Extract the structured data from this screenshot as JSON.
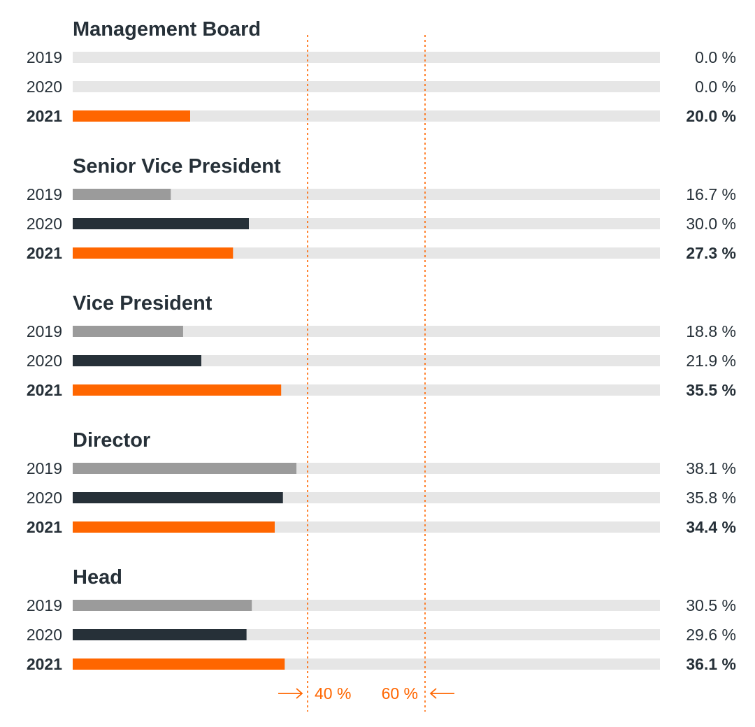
{
  "chart_data": {
    "type": "bar",
    "orientation": "horizontal",
    "xlim": [
      0,
      100
    ],
    "value_suffix": " %",
    "colors": {
      "track": "#e6e6e6",
      "2019": "#9b9b9b",
      "2020": "#263038",
      "2021": "#ff6600",
      "reference": "#ff6600",
      "text": "#263038"
    },
    "reference_lines": [
      {
        "value": 40,
        "label": "40 %",
        "arrow": "right"
      },
      {
        "value": 60,
        "label": "60 %",
        "arrow": "left"
      }
    ],
    "groups": [
      {
        "name": "Management Board",
        "rows": [
          {
            "year": "2019",
            "value": 0.0,
            "label": "0.0 %"
          },
          {
            "year": "2020",
            "value": 0.0,
            "label": "0.0 %"
          },
          {
            "year": "2021",
            "value": 20.0,
            "label": "20.0 %"
          }
        ]
      },
      {
        "name": "Senior Vice President",
        "rows": [
          {
            "year": "2019",
            "value": 16.7,
            "label": "16.7 %"
          },
          {
            "year": "2020",
            "value": 30.0,
            "label": "30.0 %"
          },
          {
            "year": "2021",
            "value": 27.3,
            "label": "27.3 %"
          }
        ]
      },
      {
        "name": "Vice President",
        "rows": [
          {
            "year": "2019",
            "value": 18.8,
            "label": "18.8 %"
          },
          {
            "year": "2020",
            "value": 21.9,
            "label": "21.9 %"
          },
          {
            "year": "2021",
            "value": 35.5,
            "label": "35.5 %"
          }
        ]
      },
      {
        "name": "Director",
        "rows": [
          {
            "year": "2019",
            "value": 38.1,
            "label": "38.1 %"
          },
          {
            "year": "2020",
            "value": 35.8,
            "label": "35.8 %"
          },
          {
            "year": "2021",
            "value": 34.4,
            "label": "34.4 %"
          }
        ]
      },
      {
        "name": "Head",
        "rows": [
          {
            "year": "2019",
            "value": 30.5,
            "label": "30.5 %"
          },
          {
            "year": "2020",
            "value": 29.6,
            "label": "29.6 %"
          },
          {
            "year": "2021",
            "value": 36.1,
            "label": "36.1 %"
          }
        ]
      }
    ]
  }
}
